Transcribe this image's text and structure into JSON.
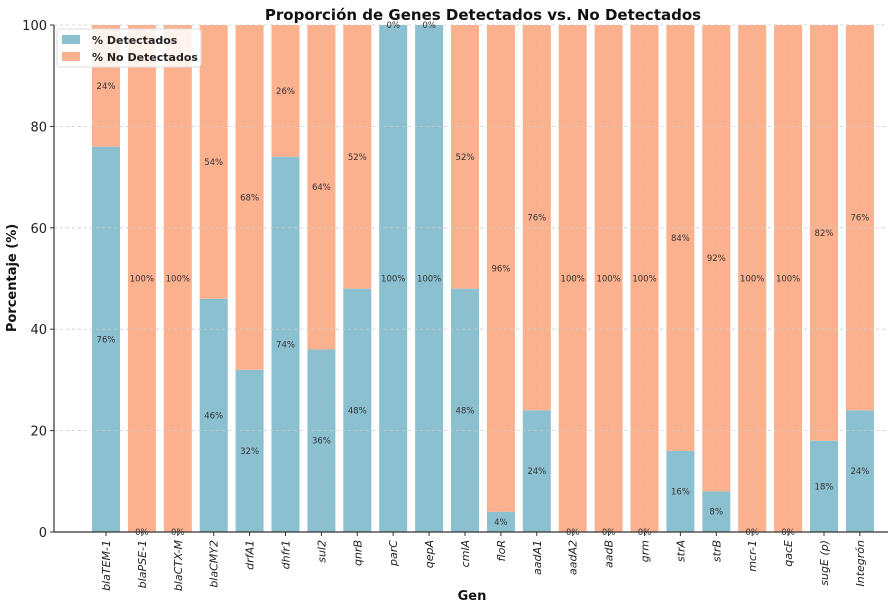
{
  "chart_data": {
    "type": "bar",
    "stacked": true,
    "title": "Proporción de Genes Detectados vs. No Detectados",
    "xlabel": "Gen",
    "ylabel": "Porcentaje (%)",
    "ylim": [
      0,
      100
    ],
    "yticks": [
      0,
      20,
      40,
      60,
      80,
      100
    ],
    "grid": true,
    "legend_position": "top-left",
    "categories": [
      "blaTEM-1",
      "blaPSE-1",
      "blaCTX-M",
      "blaCMY2",
      "drfA1",
      "dhfr1",
      "sul2",
      "qnrB",
      "parC",
      "qepA",
      "cmlA",
      "floR",
      "aadA1",
      "aadA2",
      "aadB",
      "grm",
      "strA",
      "strB",
      "mcr-1",
      "qacE",
      "sugE (p)",
      "Integrón"
    ],
    "series": [
      {
        "name": "% Detectados",
        "color": "#8bc0d0",
        "values": [
          76,
          0,
          0,
          46,
          32,
          74,
          36,
          48,
          100,
          100,
          48,
          4,
          24,
          0,
          0,
          0,
          16,
          8,
          0,
          0,
          18,
          24
        ]
      },
      {
        "name": "% No Detectados",
        "color": "#fbb08e",
        "values": [
          24,
          100,
          100,
          54,
          68,
          26,
          64,
          52,
          0,
          0,
          52,
          96,
          76,
          100,
          100,
          100,
          84,
          92,
          100,
          100,
          82,
          76
        ]
      }
    ],
    "label_suffix": "%"
  }
}
